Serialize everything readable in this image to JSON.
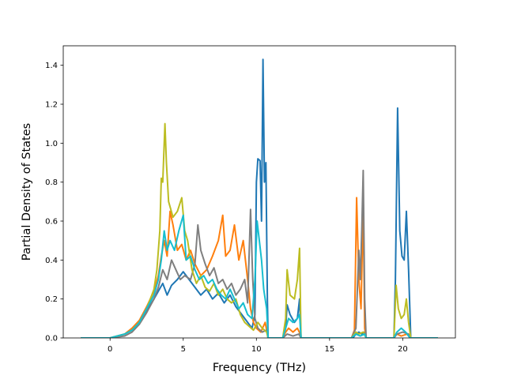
{
  "chart_data": {
    "type": "line",
    "title": "",
    "xlabel": "Frequency (THz)",
    "ylabel": "Partial Density of States",
    "xlim": [
      -3.2,
      23.6
    ],
    "ylim": [
      0,
      1.5
    ],
    "xticks": [
      0,
      5,
      10,
      15,
      20
    ],
    "yticks": [
      0.0,
      0.2,
      0.4,
      0.6,
      0.8,
      1.0,
      1.2,
      1.4
    ],
    "grid": false,
    "legend": "none",
    "series": [
      {
        "color": "#1f77b4",
        "points": [
          [
            -2,
            0
          ],
          [
            0,
            0
          ],
          [
            1,
            0.02
          ],
          [
            1.5,
            0.04
          ],
          [
            2,
            0.08
          ],
          [
            2.5,
            0.14
          ],
          [
            3,
            0.2
          ],
          [
            3.3,
            0.24
          ],
          [
            3.6,
            0.28
          ],
          [
            3.9,
            0.22
          ],
          [
            4.2,
            0.27
          ],
          [
            4.6,
            0.3
          ],
          [
            5,
            0.34
          ],
          [
            5.4,
            0.3
          ],
          [
            5.8,
            0.26
          ],
          [
            6.2,
            0.22
          ],
          [
            6.6,
            0.25
          ],
          [
            7,
            0.2
          ],
          [
            7.4,
            0.23
          ],
          [
            7.8,
            0.18
          ],
          [
            8.2,
            0.22
          ],
          [
            8.6,
            0.16
          ],
          [
            9,
            0.12
          ],
          [
            9.4,
            0.08
          ],
          [
            9.7,
            0.05
          ],
          [
            9.9,
            0.12
          ],
          [
            10.0,
            0.8
          ],
          [
            10.1,
            0.92
          ],
          [
            10.25,
            0.91
          ],
          [
            10.35,
            0.6
          ],
          [
            10.45,
            1.43
          ],
          [
            10.55,
            0.8
          ],
          [
            10.65,
            0.9
          ],
          [
            10.75,
            0.2
          ],
          [
            10.8,
            0
          ],
          [
            11.8,
            0
          ],
          [
            12.0,
            0.05
          ],
          [
            12.1,
            0.17
          ],
          [
            12.3,
            0.12
          ],
          [
            12.6,
            0.08
          ],
          [
            12.8,
            0.1
          ],
          [
            12.95,
            0.2
          ],
          [
            13.05,
            0
          ],
          [
            16.6,
            0
          ],
          [
            16.8,
            0.02
          ],
          [
            17.0,
            0.03
          ],
          [
            17.2,
            0.02
          ],
          [
            17.4,
            0.03
          ],
          [
            17.5,
            0
          ],
          [
            19.4,
            0
          ],
          [
            19.5,
            0.3
          ],
          [
            19.65,
            1.18
          ],
          [
            19.8,
            0.55
          ],
          [
            19.95,
            0.42
          ],
          [
            20.1,
            0.4
          ],
          [
            20.25,
            0.65
          ],
          [
            20.4,
            0.35
          ],
          [
            20.55,
            0
          ],
          [
            22.4,
            0
          ]
        ]
      },
      {
        "color": "#ff7f0e",
        "points": [
          [
            -2,
            0
          ],
          [
            0,
            0
          ],
          [
            1,
            0.02
          ],
          [
            1.5,
            0.05
          ],
          [
            2,
            0.09
          ],
          [
            2.5,
            0.16
          ],
          [
            3,
            0.24
          ],
          [
            3.3,
            0.32
          ],
          [
            3.5,
            0.42
          ],
          [
            3.7,
            0.5
          ],
          [
            3.9,
            0.42
          ],
          [
            4.1,
            0.65
          ],
          [
            4.3,
            0.58
          ],
          [
            4.6,
            0.45
          ],
          [
            4.9,
            0.48
          ],
          [
            5.2,
            0.4
          ],
          [
            5.5,
            0.45
          ],
          [
            5.8,
            0.38
          ],
          [
            6.2,
            0.32
          ],
          [
            6.6,
            0.35
          ],
          [
            7,
            0.42
          ],
          [
            7.4,
            0.5
          ],
          [
            7.7,
            0.63
          ],
          [
            7.9,
            0.42
          ],
          [
            8.2,
            0.45
          ],
          [
            8.5,
            0.58
          ],
          [
            8.8,
            0.4
          ],
          [
            9.1,
            0.5
          ],
          [
            9.4,
            0.3
          ],
          [
            9.6,
            0.15
          ],
          [
            9.8,
            0.08
          ],
          [
            10.0,
            0.05
          ],
          [
            10.3,
            0.03
          ],
          [
            10.6,
            0.08
          ],
          [
            10.8,
            0
          ],
          [
            11.8,
            0
          ],
          [
            12.0,
            0.03
          ],
          [
            12.2,
            0.05
          ],
          [
            12.5,
            0.03
          ],
          [
            12.8,
            0.05
          ],
          [
            13.0,
            0.02
          ],
          [
            13.05,
            0
          ],
          [
            16.5,
            0
          ],
          [
            16.7,
            0.04
          ],
          [
            16.85,
            0.72
          ],
          [
            17.0,
            0.3
          ],
          [
            17.15,
            0.15
          ],
          [
            17.3,
            0.68
          ],
          [
            17.4,
            0.05
          ],
          [
            17.5,
            0
          ],
          [
            19.4,
            0
          ],
          [
            19.6,
            0.02
          ],
          [
            19.9,
            0.01
          ],
          [
            20.3,
            0.02
          ],
          [
            20.5,
            0
          ],
          [
            22.4,
            0
          ]
        ]
      },
      {
        "color": "#7f7f7f",
        "points": [
          [
            -2,
            0
          ],
          [
            0,
            0
          ],
          [
            1,
            0.01
          ],
          [
            1.5,
            0.03
          ],
          [
            2,
            0.07
          ],
          [
            2.5,
            0.13
          ],
          [
            3,
            0.2
          ],
          [
            3.3,
            0.26
          ],
          [
            3.6,
            0.35
          ],
          [
            3.9,
            0.3
          ],
          [
            4.2,
            0.4
          ],
          [
            4.5,
            0.35
          ],
          [
            4.8,
            0.3
          ],
          [
            5.1,
            0.32
          ],
          [
            5.5,
            0.3
          ],
          [
            5.8,
            0.38
          ],
          [
            6.0,
            0.58
          ],
          [
            6.2,
            0.45
          ],
          [
            6.5,
            0.38
          ],
          [
            6.8,
            0.32
          ],
          [
            7.1,
            0.36
          ],
          [
            7.4,
            0.28
          ],
          [
            7.7,
            0.3
          ],
          [
            8.0,
            0.25
          ],
          [
            8.3,
            0.28
          ],
          [
            8.6,
            0.22
          ],
          [
            8.9,
            0.25
          ],
          [
            9.2,
            0.3
          ],
          [
            9.4,
            0.18
          ],
          [
            9.6,
            0.66
          ],
          [
            9.75,
            0.3
          ],
          [
            9.9,
            0.1
          ],
          [
            10.1,
            0.05
          ],
          [
            10.4,
            0.03
          ],
          [
            10.7,
            0.04
          ],
          [
            10.8,
            0
          ],
          [
            11.8,
            0
          ],
          [
            12.1,
            0.02
          ],
          [
            12.5,
            0.01
          ],
          [
            12.9,
            0.02
          ],
          [
            13.05,
            0
          ],
          [
            16.5,
            0
          ],
          [
            16.8,
            0.05
          ],
          [
            17.0,
            0.45
          ],
          [
            17.1,
            0.3
          ],
          [
            17.2,
            0.55
          ],
          [
            17.3,
            0.86
          ],
          [
            17.4,
            0.2
          ],
          [
            17.5,
            0
          ],
          [
            19.4,
            0
          ],
          [
            19.6,
            0.02
          ],
          [
            20.0,
            0.03
          ],
          [
            20.4,
            0.02
          ],
          [
            20.5,
            0
          ],
          [
            22.4,
            0
          ]
        ]
      },
      {
        "color": "#bcbd22",
        "points": [
          [
            -2,
            0
          ],
          [
            0,
            0
          ],
          [
            1,
            0.02
          ],
          [
            1.5,
            0.04
          ],
          [
            2,
            0.08
          ],
          [
            2.5,
            0.15
          ],
          [
            3,
            0.25
          ],
          [
            3.2,
            0.35
          ],
          [
            3.4,
            0.55
          ],
          [
            3.5,
            0.82
          ],
          [
            3.6,
            0.8
          ],
          [
            3.75,
            1.1
          ],
          [
            3.85,
            0.9
          ],
          [
            4.0,
            0.7
          ],
          [
            4.3,
            0.62
          ],
          [
            4.6,
            0.65
          ],
          [
            4.9,
            0.72
          ],
          [
            5.1,
            0.55
          ],
          [
            5.3,
            0.5
          ],
          [
            5.6,
            0.35
          ],
          [
            5.9,
            0.28
          ],
          [
            6.2,
            0.32
          ],
          [
            6.5,
            0.26
          ],
          [
            6.8,
            0.24
          ],
          [
            7.1,
            0.28
          ],
          [
            7.4,
            0.22
          ],
          [
            7.7,
            0.25
          ],
          [
            8.0,
            0.2
          ],
          [
            8.3,
            0.18
          ],
          [
            8.6,
            0.2
          ],
          [
            8.9,
            0.12
          ],
          [
            9.2,
            0.08
          ],
          [
            9.5,
            0.06
          ],
          [
            9.8,
            0.04
          ],
          [
            10.1,
            0.08
          ],
          [
            10.4,
            0.05
          ],
          [
            10.7,
            0.03
          ],
          [
            10.8,
            0
          ],
          [
            11.8,
            0
          ],
          [
            12.0,
            0.1
          ],
          [
            12.1,
            0.35
          ],
          [
            12.3,
            0.22
          ],
          [
            12.6,
            0.2
          ],
          [
            12.8,
            0.3
          ],
          [
            12.95,
            0.46
          ],
          [
            13.05,
            0
          ],
          [
            16.5,
            0
          ],
          [
            16.8,
            0.03
          ],
          [
            17.0,
            0.02
          ],
          [
            17.3,
            0.03
          ],
          [
            17.5,
            0
          ],
          [
            19.4,
            0
          ],
          [
            19.55,
            0.27
          ],
          [
            19.7,
            0.15
          ],
          [
            19.9,
            0.1
          ],
          [
            20.1,
            0.12
          ],
          [
            20.25,
            0.2
          ],
          [
            20.4,
            0.08
          ],
          [
            20.55,
            0
          ],
          [
            22.4,
            0
          ]
        ]
      },
      {
        "color": "#17becf",
        "points": [
          [
            -2,
            0
          ],
          [
            0,
            0
          ],
          [
            1,
            0.02
          ],
          [
            1.5,
            0.04
          ],
          [
            2,
            0.08
          ],
          [
            2.5,
            0.15
          ],
          [
            3,
            0.22
          ],
          [
            3.3,
            0.3
          ],
          [
            3.5,
            0.4
          ],
          [
            3.7,
            0.55
          ],
          [
            3.9,
            0.45
          ],
          [
            4.1,
            0.5
          ],
          [
            4.4,
            0.45
          ],
          [
            4.7,
            0.55
          ],
          [
            5.0,
            0.63
          ],
          [
            5.2,
            0.4
          ],
          [
            5.5,
            0.42
          ],
          [
            5.8,
            0.35
          ],
          [
            6.1,
            0.3
          ],
          [
            6.4,
            0.32
          ],
          [
            6.7,
            0.28
          ],
          [
            7.0,
            0.3
          ],
          [
            7.3,
            0.25
          ],
          [
            7.6,
            0.22
          ],
          [
            7.9,
            0.2
          ],
          [
            8.2,
            0.25
          ],
          [
            8.5,
            0.2
          ],
          [
            8.8,
            0.15
          ],
          [
            9.1,
            0.18
          ],
          [
            9.4,
            0.12
          ],
          [
            9.7,
            0.1
          ],
          [
            9.9,
            0.3
          ],
          [
            10.05,
            0.6
          ],
          [
            10.2,
            0.5
          ],
          [
            10.35,
            0.4
          ],
          [
            10.5,
            0.25
          ],
          [
            10.7,
            0.15
          ],
          [
            10.8,
            0
          ],
          [
            11.8,
            0
          ],
          [
            12.0,
            0.05
          ],
          [
            12.2,
            0.1
          ],
          [
            12.5,
            0.08
          ],
          [
            12.8,
            0.1
          ],
          [
            12.95,
            0.12
          ],
          [
            13.05,
            0
          ],
          [
            16.5,
            0
          ],
          [
            16.8,
            0.02
          ],
          [
            17.1,
            0.01
          ],
          [
            17.4,
            0.02
          ],
          [
            17.5,
            0
          ],
          [
            19.4,
            0
          ],
          [
            19.6,
            0.03
          ],
          [
            19.9,
            0.05
          ],
          [
            20.2,
            0.03
          ],
          [
            20.5,
            0
          ],
          [
            22.4,
            0
          ]
        ]
      }
    ]
  }
}
